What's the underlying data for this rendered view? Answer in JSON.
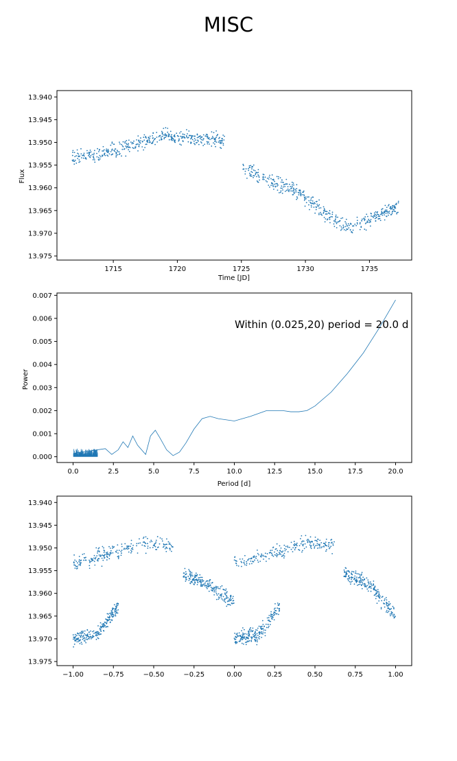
{
  "figure": {
    "title": "MISC"
  },
  "colors": {
    "series": "#1f77b4",
    "axes": "#000000",
    "background": "#ffffff"
  },
  "chart_data": [
    {
      "type": "scatter",
      "title": "",
      "xlabel": "Time [JD]",
      "ylabel": "Flux",
      "xlim": [
        1710.6,
        1738.3
      ],
      "ylim": [
        13.9759,
        13.9386
      ],
      "y_inverted": true,
      "xticks": [
        1715,
        1720,
        1725,
        1730,
        1735
      ],
      "xtick_labels": [
        "1715",
        "1720",
        "1725",
        "1730",
        "1735"
      ],
      "yticks": [
        13.94,
        13.945,
        13.95,
        13.955,
        13.96,
        13.965,
        13.97,
        13.975
      ],
      "ytick_labels": [
        "13.940",
        "13.945",
        "13.950",
        "13.955",
        "13.960",
        "13.965",
        "13.970",
        "13.975"
      ],
      "grid": false,
      "series": [
        {
          "x_range": [
            1711.8,
            1723.7
          ],
          "trend_y": [
            [
              1711.8,
              13.9535
            ],
            [
              1714,
              13.9525
            ],
            [
              1716.5,
              13.9505
            ],
            [
              1719,
              13.9485
            ],
            [
              1721.5,
              13.9495
            ],
            [
              1723.7,
              13.9495
            ]
          ],
          "n_points": 420
        },
        {
          "x_range": [
            1725.1,
            1737.3
          ],
          "trend_y": [
            [
              1725.1,
              13.9555
            ],
            [
              1727,
              13.958
            ],
            [
              1729.5,
              13.961
            ],
            [
              1731.5,
              13.9655
            ],
            [
              1733.5,
              13.969
            ],
            [
              1735.5,
              13.9665
            ],
            [
              1737.3,
              13.964
            ]
          ],
          "n_points": 430
        }
      ]
    },
    {
      "type": "line",
      "title": "",
      "xlabel": "Period [d]",
      "ylabel": "Power",
      "xlim": [
        -1.0,
        21.0
      ],
      "ylim": [
        -0.00025,
        0.0071
      ],
      "xticks": [
        0.0,
        2.5,
        5.0,
        7.5,
        10.0,
        12.5,
        15.0,
        17.5,
        20.0
      ],
      "xtick_labels": [
        "0.0",
        "2.5",
        "5.0",
        "7.5",
        "10.0",
        "12.5",
        "15.0",
        "17.5",
        "20.0"
      ],
      "yticks": [
        0.0,
        0.001,
        0.002,
        0.003,
        0.004,
        0.005,
        0.006,
        0.007
      ],
      "ytick_labels": [
        "0.000",
        "0.001",
        "0.002",
        "0.003",
        "0.004",
        "0.005",
        "0.006",
        "0.007"
      ],
      "grid": false,
      "annotation": "Within (0.025,20) period = 20.0 d",
      "series": [
        {
          "x": [
            0.025,
            2.0,
            2.4,
            2.8,
            3.1,
            3.4,
            3.7,
            4.0,
            4.5,
            4.8,
            5.1,
            5.4,
            5.8,
            6.2,
            6.6,
            7.0,
            7.5,
            8.0,
            8.5,
            9.0,
            10.0,
            11.0,
            12.0,
            13.0,
            13.5,
            14.0,
            14.5,
            15.0,
            16.0,
            17.0,
            18.0,
            19.0,
            20.0
          ],
          "y": [
            0.00015,
            0.00035,
            0.0001,
            0.0003,
            0.00065,
            0.0004,
            0.0009,
            0.0005,
            0.0001,
            0.0009,
            0.00115,
            0.0008,
            0.0003,
            5e-05,
            0.0002,
            0.0006,
            0.0012,
            0.00165,
            0.00175,
            0.00165,
            0.00155,
            0.00175,
            0.002,
            0.002,
            0.00195,
            0.00195,
            0.002,
            0.0022,
            0.0028,
            0.0036,
            0.0045,
            0.0056,
            0.0068
          ]
        }
      ]
    },
    {
      "type": "scatter",
      "title": "",
      "xlabel": "",
      "ylabel": "",
      "xlim": [
        -1.1,
        1.1
      ],
      "ylim": [
        13.9759,
        13.9386
      ],
      "y_inverted": true,
      "xticks": [
        -1.0,
        -0.75,
        -0.5,
        -0.25,
        0.0,
        0.25,
        0.5,
        0.75,
        1.0
      ],
      "xtick_labels": [
        "−1.00",
        "−0.75",
        "−0.50",
        "−0.25",
        "0.00",
        "0.25",
        "0.50",
        "0.75",
        "1.00"
      ],
      "yticks": [
        13.94,
        13.945,
        13.95,
        13.955,
        13.96,
        13.965,
        13.97,
        13.975
      ],
      "ytick_labels": [
        "13.940",
        "13.945",
        "13.950",
        "13.955",
        "13.960",
        "13.965",
        "13.970",
        "13.975"
      ],
      "grid": false,
      "series": [
        {
          "phase_segments": [
            {
              "x_range": [
                -1.0,
                -0.72
              ],
              "trend_y": [
                [
                  -1.0,
                  13.97
                ],
                [
                  -0.85,
                  13.969
                ],
                [
                  -0.72,
                  13.963
                ]
              ]
            },
            {
              "x_range": [
                -1.0,
                -0.38
              ],
              "trend_y": [
                [
                  -1.0,
                  13.9535
                ],
                [
                  -0.75,
                  13.951
                ],
                [
                  -0.55,
                  13.949
                ],
                [
                  -0.38,
                  13.9495
                ]
              ]
            },
            {
              "x_range": [
                -0.32,
                0.0
              ],
              "trend_y": [
                [
                  -0.32,
                  13.9555
                ],
                [
                  -0.15,
                  13.9585
                ],
                [
                  0.0,
                  13.962
                ]
              ]
            },
            {
              "x_range": [
                0.0,
                0.28
              ],
              "trend_y": [
                [
                  0.0,
                  13.97
                ],
                [
                  0.15,
                  13.969
                ],
                [
                  0.28,
                  13.963
                ]
              ]
            },
            {
              "x_range": [
                0.0,
                0.62
              ],
              "trend_y": [
                [
                  0.0,
                  13.9535
                ],
                [
                  0.25,
                  13.951
                ],
                [
                  0.45,
                  13.949
                ],
                [
                  0.62,
                  13.9495
                ]
              ]
            },
            {
              "x_range": [
                0.68,
                1.0
              ],
              "trend_y": [
                [
                  0.68,
                  13.9555
                ],
                [
                  0.85,
                  13.9585
                ],
                [
                  1.0,
                  13.965
                ]
              ]
            }
          ]
        }
      ]
    }
  ]
}
